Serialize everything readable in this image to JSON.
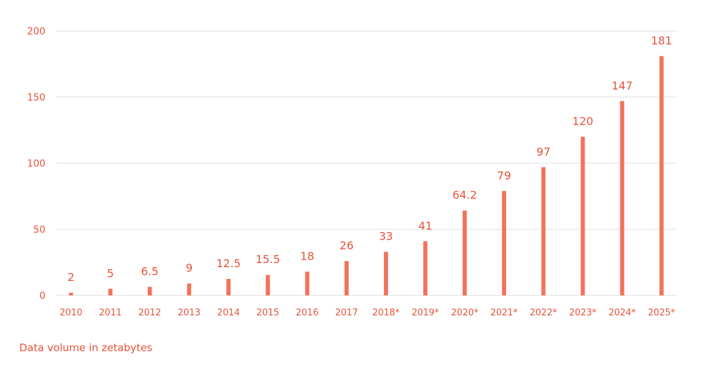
{
  "colors": {
    "bar": "#f2735a",
    "value_label": "#e5533a",
    "tick_label": "#e5533a",
    "grid": "#dcdcdc"
  },
  "chart_data": {
    "type": "bar",
    "categories": [
      "2010",
      "2011",
      "2012",
      "2013",
      "2014",
      "2015",
      "2016",
      "2017",
      "2018*",
      "2019*",
      "2020*",
      "2021*",
      "2022*",
      "2023*",
      "2024*",
      "2025*"
    ],
    "values": [
      2,
      5,
      6.5,
      9,
      12.5,
      15.5,
      18,
      26,
      33,
      41,
      64.2,
      79,
      97,
      120,
      147,
      181
    ],
    "value_labels": [
      "2",
      "5",
      "6.5",
      "9",
      "12.5",
      "15.5",
      "18",
      "26",
      "33",
      "41",
      "64.2",
      "79",
      "97",
      "120",
      "147",
      "181"
    ],
    "y_ticks": [
      0,
      50,
      100,
      150,
      200
    ],
    "ylim": [
      0,
      200
    ],
    "grid": true,
    "ylabel": "Data volume in zetabytes"
  }
}
